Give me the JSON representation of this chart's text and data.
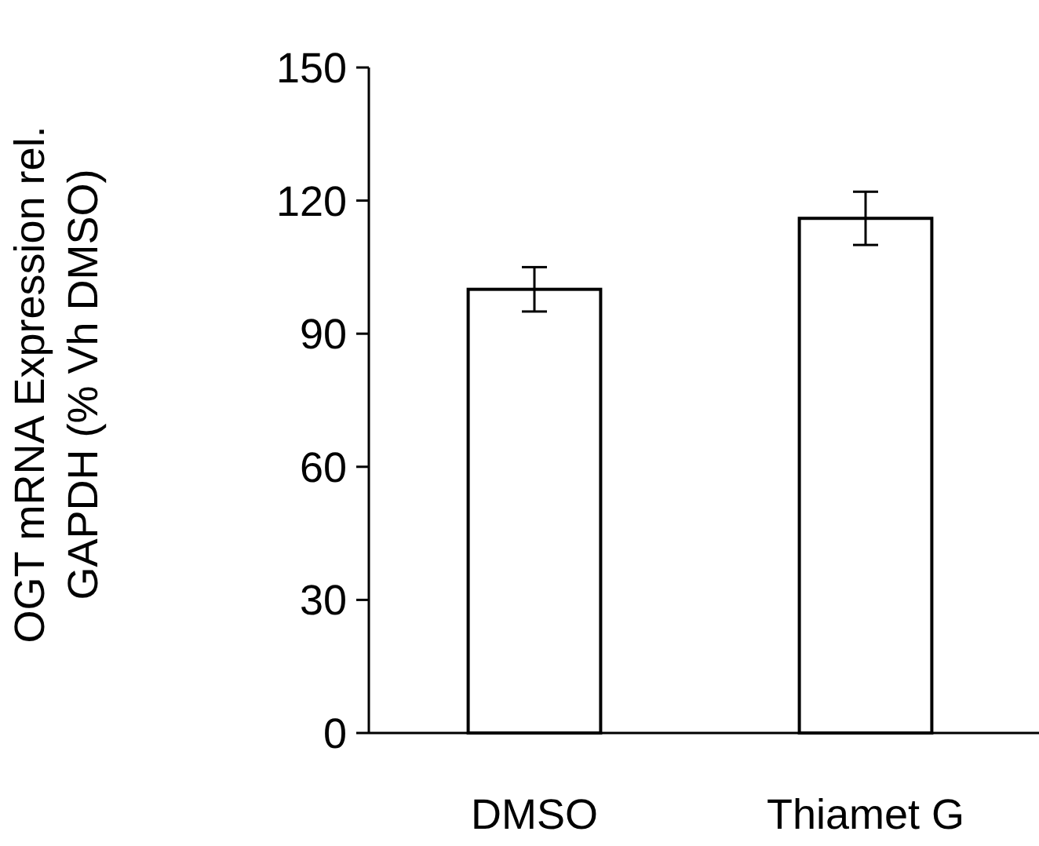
{
  "chart_data": {
    "type": "bar",
    "ylabel": "OGT mRNA Expression rel. GAPDH (% Vh DMSO)",
    "categories": [
      "DMSO",
      "Thiamet G"
    ],
    "values": [
      100,
      116
    ],
    "errors": [
      5,
      6
    ],
    "color": "#ffffff",
    "ylim": [
      0,
      150
    ],
    "yticks": [
      0,
      30,
      60,
      90,
      120,
      150
    ],
    "grid": false
  }
}
